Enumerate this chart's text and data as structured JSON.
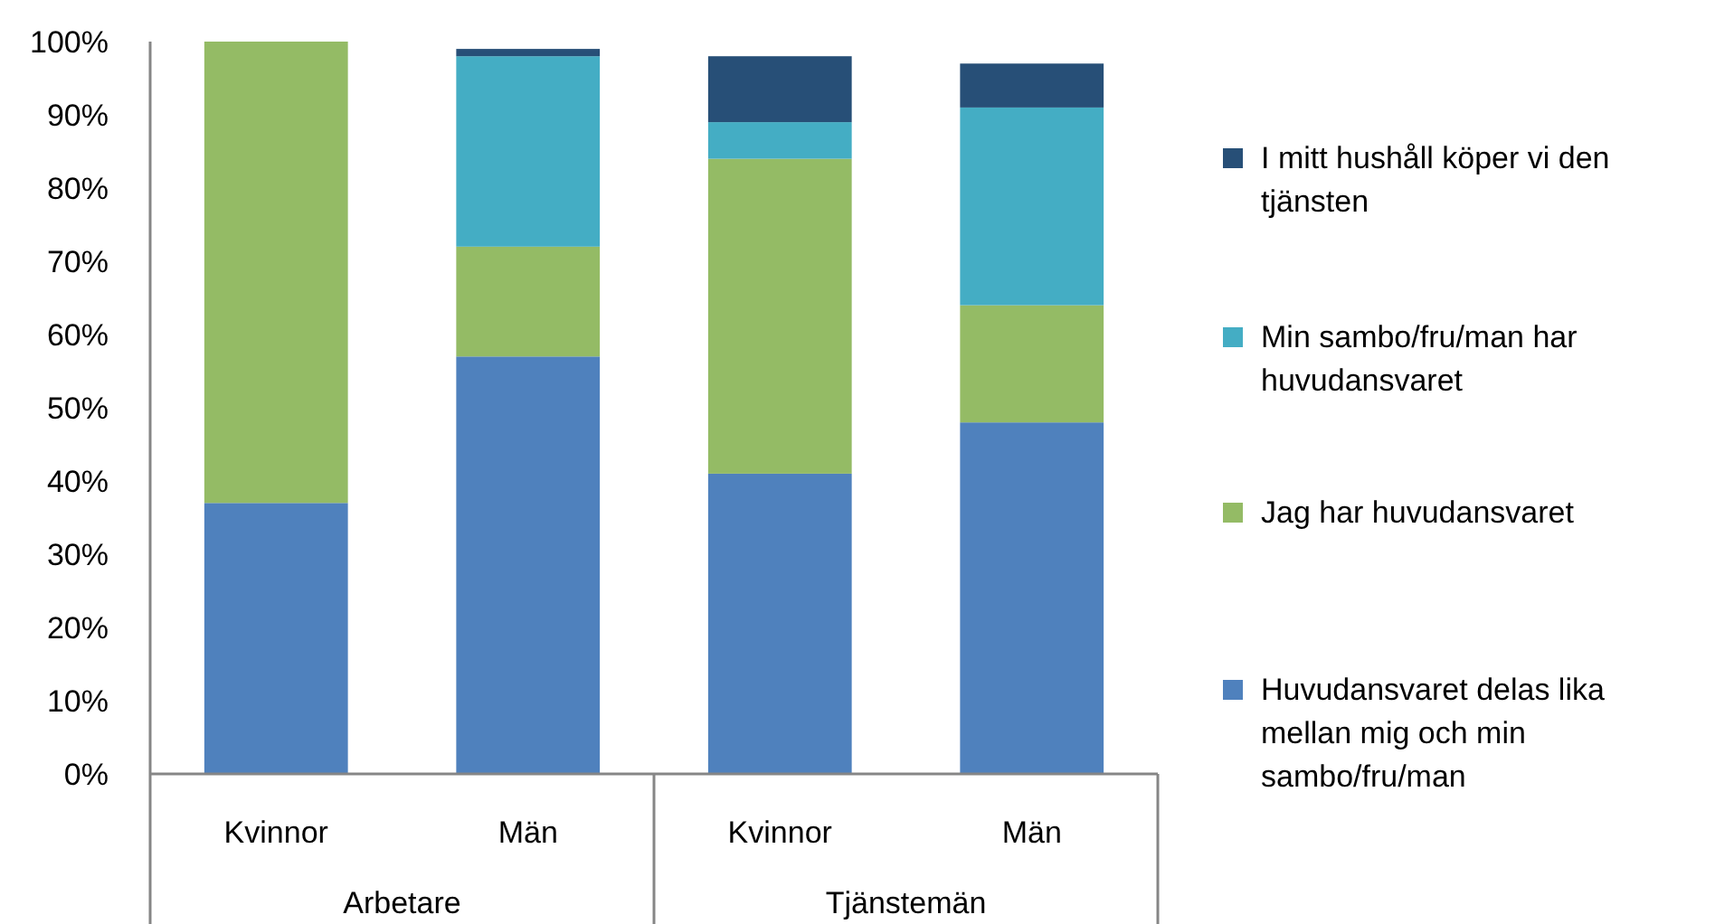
{
  "chart_data": {
    "type": "bar",
    "stacked": true,
    "categories": [
      "Kvinnor",
      "Män",
      "Kvinnor",
      "Män"
    ],
    "annotations": [
      "Arbetare",
      "Tjänstemän"
    ],
    "series": [
      {
        "name": "Huvudansvaret delas lika mellan mig och min sambo/fru/man",
        "color": "#4f81bd",
        "values": [
          37,
          57,
          41,
          48
        ]
      },
      {
        "name": "Jag har huvudansvaret",
        "color": "#94bb65",
        "values": [
          63,
          15,
          43,
          16
        ]
      },
      {
        "name": "Min sambo/fru/man har huvudansvaret",
        "color": "#44adc4",
        "values": [
          0,
          26,
          5,
          27
        ]
      },
      {
        "name": "I mitt hushåll köper vi den tjänsten",
        "color": "#274f77",
        "values": [
          0,
          1,
          9,
          6
        ]
      }
    ],
    "ylim": [
      0,
      100
    ],
    "yticks": [
      {
        "value": 0,
        "label": "0%"
      },
      {
        "value": 10,
        "label": "10%"
      },
      {
        "value": 20,
        "label": "20%"
      },
      {
        "value": 30,
        "label": "30%"
      },
      {
        "value": 40,
        "label": "40%"
      },
      {
        "value": 50,
        "label": "50%"
      },
      {
        "value": 60,
        "label": "60%"
      },
      {
        "value": 70,
        "label": "70%"
      },
      {
        "value": 80,
        "label": "80%"
      },
      {
        "value": 90,
        "label": "90%"
      },
      {
        "value": 100,
        "label": "100%"
      }
    ],
    "legend": "right",
    "grid": false
  }
}
